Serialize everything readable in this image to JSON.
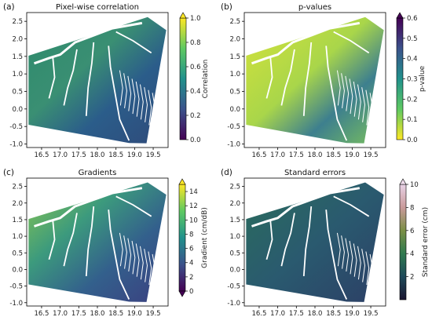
{
  "chart_data": [
    {
      "type": "heatmap",
      "panel_label": "(a)",
      "title": "Pixel-wise correlation",
      "x_ticks": [
        16.5,
        17.0,
        17.5,
        18.0,
        18.5,
        19.0,
        19.5
      ],
      "y_ticks": [
        -1.0,
        -0.5,
        0.0,
        0.5,
        1.0,
        1.5,
        2.0,
        2.5
      ],
      "xlim": [
        16.1,
        19.9
      ],
      "ylim": [
        -1.1,
        2.75
      ],
      "colorbar": {
        "label": "Correlation",
        "colormap": "viridis",
        "ticks": [
          0.0,
          0.2,
          0.4,
          0.6,
          0.8,
          1.0
        ],
        "range": [
          0.0,
          1.0
        ],
        "extend": "top"
      }
    },
    {
      "type": "heatmap",
      "panel_label": "(b)",
      "title": "p-values",
      "x_ticks": [
        16.5,
        17.0,
        17.5,
        18.0,
        18.5,
        19.0,
        19.5
      ],
      "y_ticks": [
        -1.0,
        -0.5,
        0.0,
        0.5,
        1.0,
        1.5,
        2.0,
        2.5
      ],
      "xlim": [
        16.1,
        19.9
      ],
      "ylim": [
        -1.1,
        2.75
      ],
      "colorbar": {
        "label": "p-value",
        "colormap": "viridis_r",
        "ticks": [
          0.0,
          0.1,
          0.2,
          0.3,
          0.4,
          0.5,
          0.6
        ],
        "range": [
          0.0,
          0.6
        ],
        "extend": "top"
      }
    },
    {
      "type": "heatmap",
      "panel_label": "(c)",
      "title": "Gradients",
      "x_ticks": [
        16.5,
        17.0,
        17.5,
        18.0,
        18.5,
        19.0,
        19.5
      ],
      "y_ticks": [
        -1.0,
        -0.5,
        0.0,
        0.5,
        1.0,
        1.5,
        2.0,
        2.5
      ],
      "xlim": [
        16.1,
        19.9
      ],
      "ylim": [
        -1.1,
        2.75
      ],
      "colorbar": {
        "label": "Gradient (cm/dB)",
        "colormap": "viridis",
        "ticks": [
          0,
          2,
          4,
          6,
          8,
          10,
          12,
          14
        ],
        "range": [
          0,
          15
        ],
        "extend": "both"
      }
    },
    {
      "type": "heatmap",
      "panel_label": "(d)",
      "title": "Standard errors",
      "x_ticks": [
        16.5,
        17.0,
        17.5,
        18.0,
        18.5,
        19.0,
        19.5
      ],
      "y_ticks": [
        -1.0,
        -0.5,
        0.0,
        0.5,
        1.0,
        1.5,
        2.0,
        2.5
      ],
      "xlim": [
        16.1,
        19.9
      ],
      "ylim": [
        -1.1,
        2.75
      ],
      "colorbar": {
        "label": "Standard error (cm)",
        "colormap": "cubehelix",
        "ticks": [
          2,
          4,
          6,
          8,
          10
        ],
        "range": [
          0,
          10
        ],
        "extend": "top"
      }
    }
  ]
}
